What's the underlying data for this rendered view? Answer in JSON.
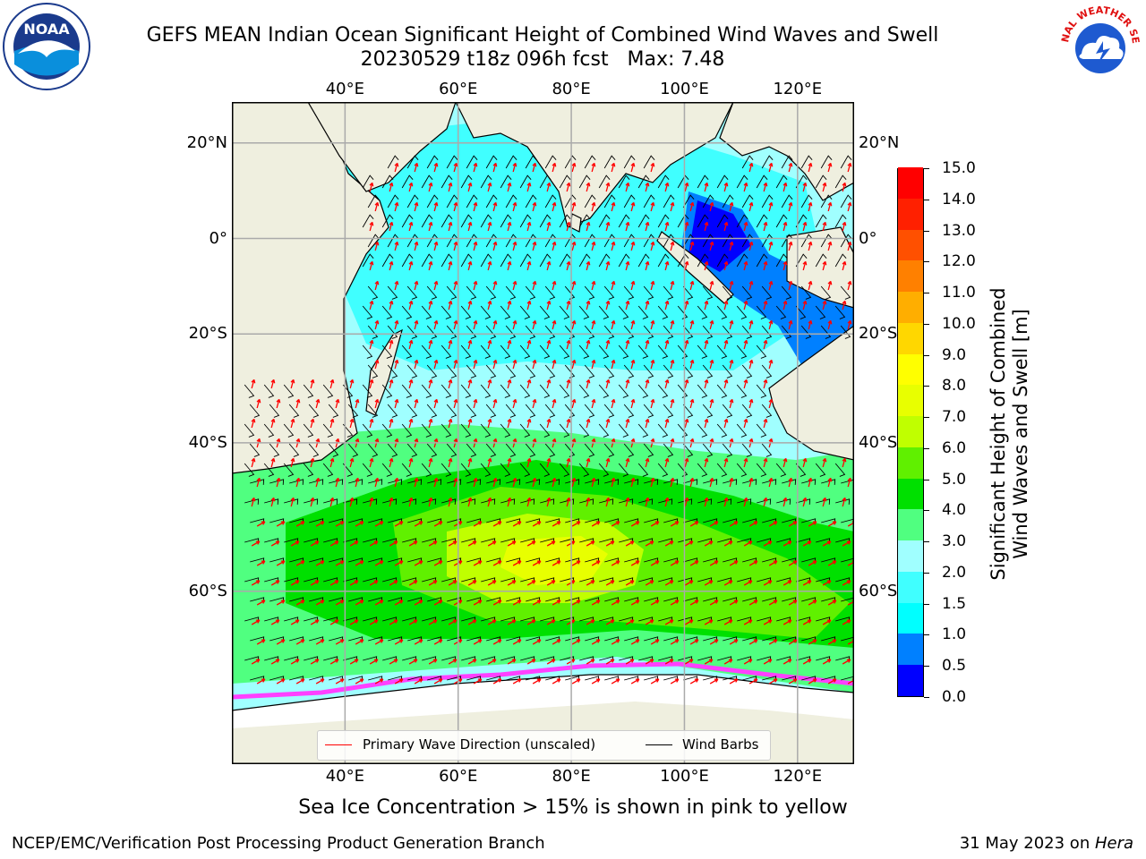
{
  "title": {
    "line1": "GEFS MEAN Indian Ocean Significant Height of Combined Wind Waves and Swell",
    "line2": "20230529 t18z 096h fcst   Max: 7.48"
  },
  "logos": {
    "left": "NOAA",
    "left_ring": "NATIONAL OCEANIC AND ATMOSPHERIC ADMINISTRATION · U.S. DEPARTMENT OF COMMERCE",
    "right_ring": "NATIONAL WEATHER SERVICE"
  },
  "axes": {
    "lon_ticks": [
      "40°E",
      "60°E",
      "80°E",
      "100°E",
      "120°E"
    ],
    "lon_values": [
      40,
      60,
      80,
      100,
      120
    ],
    "lat_ticks_left": [
      "20°N",
      "0°",
      "20°S",
      "40°S",
      "60°S"
    ],
    "lat_ticks_right": [
      "20°N",
      "0°",
      "20°S",
      "40°S",
      "60°S"
    ],
    "lat_values": [
      20,
      0,
      -20,
      -40,
      -60
    ],
    "lon_range": [
      20,
      130
    ],
    "lat_range": [
      -74,
      28
    ]
  },
  "legend": {
    "items": [
      {
        "label": "Primary Wave Direction (unscaled)",
        "color": "#ff0000"
      },
      {
        "label": "Wind Barbs",
        "color": "#000000"
      }
    ]
  },
  "colorbar": {
    "label_line1": "Significant Height of Combined",
    "label_line2": "Wind Waves and Swell [m]",
    "ticks": [
      "0.0",
      "0.5",
      "1.0",
      "1.5",
      "2.0",
      "3.0",
      "4.0",
      "5.0",
      "6.0",
      "7.0",
      "8.0",
      "9.0",
      "10.0",
      "11.0",
      "12.0",
      "13.0",
      "14.0",
      "15.0"
    ],
    "colors": [
      "#0000ff",
      "#0080ff",
      "#00ffff",
      "#40ffff",
      "#a0ffff",
      "#50ff80",
      "#00e000",
      "#60f000",
      "#c0ff00",
      "#e8ff00",
      "#ffff00",
      "#ffd700",
      "#ffae00",
      "#ff8000",
      "#ff5000",
      "#ff2000",
      "#ff0000"
    ]
  },
  "colors": {
    "land": "#efefdf",
    "ice": "#ffffff",
    "wave_arrow": "#ff0000",
    "wind_barb": "#000000"
  },
  "caption": "Sea Ice Concentration > 15% is shown in pink to yellow",
  "footer": {
    "left": "NCEP/EMC/Verification Post Processing Product Generation Branch",
    "right_date": "31 May 2023 on ",
    "right_host": "Hera"
  }
}
